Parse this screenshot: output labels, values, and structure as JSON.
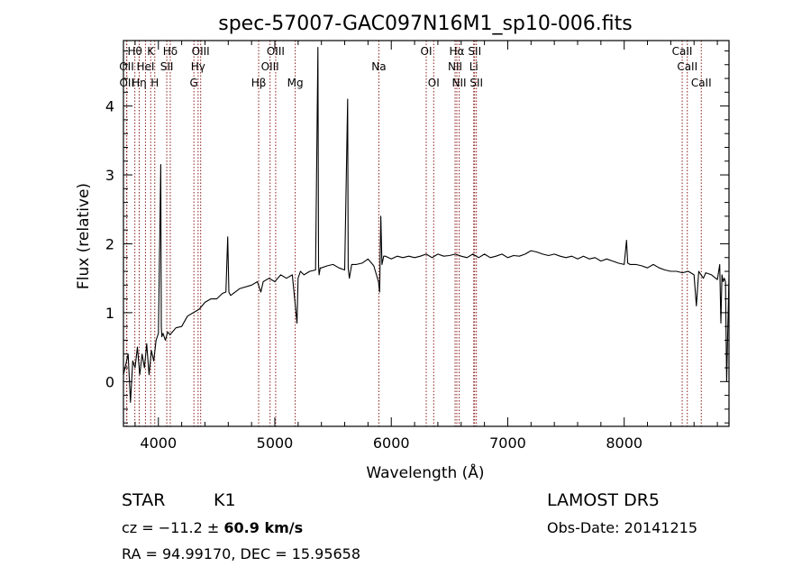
{
  "chart_data": {
    "type": "line",
    "title": "spec-57007-GAC097N16M1_sp10-006.fits",
    "xlabel": "Wavelength (Å)",
    "ylabel": "Flux (relative)",
    "xlim": [
      3700,
      8900
    ],
    "ylim": [
      -0.65,
      4.95
    ],
    "xticks": [
      4000,
      5000,
      6000,
      7000,
      8000
    ],
    "yticks": [
      0,
      1,
      2,
      3,
      4
    ],
    "line_color": "#000000",
    "marker_color": "#8b1a1a",
    "spectral_lines": [
      {
        "label": "Hθ",
        "wavelength": 3798,
        "row": 0
      },
      {
        "label": "OII",
        "wavelength": 3727,
        "row": 1
      },
      {
        "label": "OII",
        "wavelength": 3729,
        "row": 2
      },
      {
        "label": "Hη",
        "wavelength": 3835,
        "row": 2
      },
      {
        "label": "HeI",
        "wavelength": 3889,
        "row": 1
      },
      {
        "label": "K",
        "wavelength": 3934,
        "row": 0
      },
      {
        "label": "H",
        "wavelength": 3969,
        "row": 2
      },
      {
        "label": "Hδ",
        "wavelength": 4102,
        "row": 0
      },
      {
        "label": "SII",
        "wavelength": 4072,
        "row": 1
      },
      {
        "label": "OIII",
        "wavelength": 4363,
        "row": 0
      },
      {
        "label": "Hγ",
        "wavelength": 4341,
        "row": 1
      },
      {
        "label": "G",
        "wavelength": 4305,
        "row": 2
      },
      {
        "label": "Hβ",
        "wavelength": 4861,
        "row": 2
      },
      {
        "label": "OIII",
        "wavelength": 5007,
        "row": 0
      },
      {
        "label": "OIII",
        "wavelength": 4959,
        "row": 1
      },
      {
        "label": "Mg",
        "wavelength": 5175,
        "row": 2
      },
      {
        "label": "Na",
        "wavelength": 5893,
        "row": 1
      },
      {
        "label": "OI",
        "wavelength": 6300,
        "row": 0
      },
      {
        "label": "OI",
        "wavelength": 6364,
        "row": 2
      },
      {
        "label": "Hα",
        "wavelength": 6563,
        "row": 0
      },
      {
        "label": "NII",
        "wavelength": 6548,
        "row": 1
      },
      {
        "label": "NII",
        "wavelength": 6583,
        "row": 2
      },
      {
        "label": "SII",
        "wavelength": 6716,
        "row": 0
      },
      {
        "label": "Li",
        "wavelength": 6708,
        "row": 1
      },
      {
        "label": "SII",
        "wavelength": 6731,
        "row": 2
      },
      {
        "label": "CaII",
        "wavelength": 8498,
        "row": 0
      },
      {
        "label": "CaII",
        "wavelength": 8542,
        "row": 1
      },
      {
        "label": "CaII",
        "wavelength": 8662,
        "row": 2
      }
    ],
    "series": [
      {
        "x": [
          3700,
          3740,
          3760,
          3780,
          3800,
          3820,
          3840,
          3860,
          3880,
          3900,
          3920,
          3940,
          3960,
          3980,
          4000,
          4020,
          4025,
          4030,
          4040,
          4060,
          4080,
          4100,
          4150,
          4200,
          4250,
          4300,
          4350,
          4400,
          4450,
          4500,
          4550,
          4580,
          4595,
          4605,
          4620,
          4700,
          4800,
          4850,
          4880,
          4900,
          4950,
          5000,
          5050,
          5100,
          5150,
          5190,
          5200,
          5220,
          5250,
          5300,
          5350,
          5370,
          5375,
          5380,
          5390,
          5400,
          5450,
          5500,
          5550,
          5600,
          5625,
          5630,
          5640,
          5660,
          5700,
          5750,
          5800,
          5850,
          5890,
          5900,
          5910,
          5920,
          5935,
          5950,
          6000,
          6050,
          6100,
          6150,
          6200,
          6250,
          6300,
          6350,
          6400,
          6450,
          6500,
          6550,
          6600,
          6650,
          6700,
          6750,
          6800,
          6850,
          6900,
          6950,
          7000,
          7050,
          7100,
          7150,
          7200,
          7250,
          7300,
          7350,
          7400,
          7450,
          7500,
          7550,
          7600,
          7650,
          7700,
          7750,
          7800,
          7850,
          7900,
          7950,
          8000,
          8020,
          8030,
          8050,
          8100,
          8150,
          8200,
          8250,
          8300,
          8350,
          8400,
          8450,
          8500,
          8550,
          8600,
          8620,
          8640,
          8660,
          8680,
          8700,
          8750,
          8800,
          8820,
          8830,
          8840,
          8850,
          8860,
          8870,
          8880,
          8900
        ],
        "y": [
          0.1,
          0.4,
          -0.3,
          0.3,
          0.2,
          0.5,
          0.1,
          0.4,
          0.2,
          0.55,
          0.1,
          0.45,
          0.3,
          0.6,
          0.7,
          3.15,
          0.8,
          0.65,
          0.7,
          0.6,
          0.72,
          0.68,
          0.78,
          0.8,
          0.95,
          1.0,
          1.05,
          1.15,
          1.2,
          1.2,
          1.28,
          1.3,
          2.1,
          1.3,
          1.25,
          1.35,
          1.4,
          1.45,
          1.3,
          1.45,
          1.5,
          1.45,
          1.55,
          1.5,
          1.55,
          0.85,
          1.5,
          1.6,
          1.55,
          1.6,
          1.62,
          4.85,
          1.7,
          1.55,
          1.65,
          1.65,
          1.68,
          1.7,
          1.65,
          1.62,
          4.1,
          1.65,
          1.5,
          1.7,
          1.7,
          1.72,
          1.78,
          1.68,
          1.45,
          1.3,
          2.4,
          1.7,
          1.82,
          1.82,
          1.78,
          1.82,
          1.8,
          1.82,
          1.8,
          1.82,
          1.85,
          1.8,
          1.85,
          1.82,
          1.83,
          1.85,
          1.82,
          1.8,
          1.85,
          1.8,
          1.85,
          1.8,
          1.82,
          1.85,
          1.8,
          1.83,
          1.82,
          1.85,
          1.9,
          1.88,
          1.85,
          1.83,
          1.85,
          1.82,
          1.8,
          1.82,
          1.78,
          1.82,
          1.78,
          1.8,
          1.75,
          1.78,
          1.75,
          1.72,
          1.7,
          2.05,
          1.72,
          1.7,
          1.7,
          1.68,
          1.65,
          1.7,
          1.65,
          1.62,
          1.6,
          1.6,
          1.58,
          1.6,
          1.55,
          1.1,
          1.6,
          1.55,
          1.5,
          1.58,
          1.55,
          1.48,
          1.7,
          0.85,
          1.55,
          1.45,
          1.5,
          1.45,
          0.0,
          1.55
        ]
      }
    ]
  },
  "info": {
    "object_class": "STAR",
    "subclass": "K1",
    "survey": "LAMOST DR5",
    "cz_prefix": "cz = −11.2 ± ",
    "cz_value": "60.9",
    "cz_unit": " km/s",
    "obs_date": "Obs-Date: 20141215",
    "coords": "RA =  94.99170, DEC =  15.95658"
  }
}
